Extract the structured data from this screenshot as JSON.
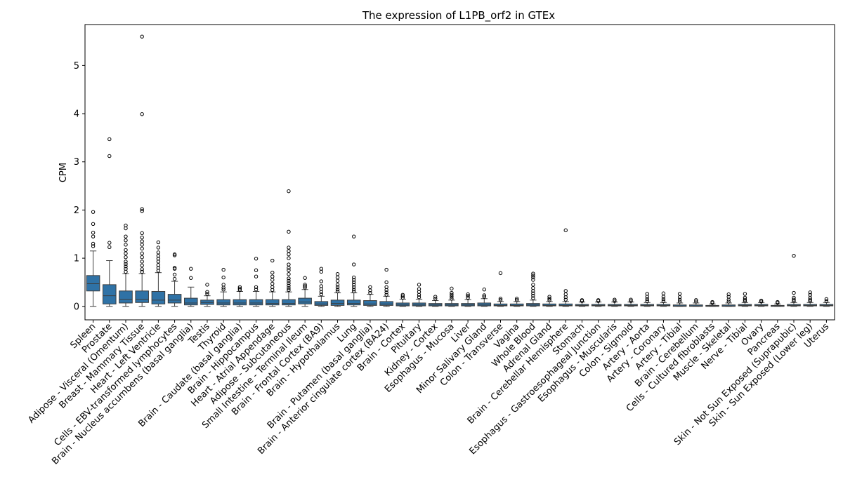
{
  "chart_data": {
    "type": "box",
    "title": "The expression of L1PB_orf2 in GTEx",
    "xlabel": "",
    "ylabel": "CPM",
    "ylim": [
      -0.28,
      5.85
    ],
    "yticks": [
      0,
      1,
      2,
      3,
      4,
      5
    ],
    "box_color": "#2f72a6",
    "categories": [
      "Spleen",
      "Prostate",
      "Adipose - Visceral (Omentum)",
      "Breast - Mammary Tissue",
      "Heart - Left Ventricle",
      "Cells - EBV-transformed lymphocytes",
      "Brain - Nucleus accumbens (basal ganglia)",
      "Testis",
      "Thyroid",
      "Brain - Caudate (basal ganglia)",
      "Brain - Hippocampus",
      "Heart - Atrial Appendage",
      "Adipose - Subcutaneous",
      "Small Intestine - Terminal Ileum",
      "Brain - Frontal Cortex (BA9)",
      "Brain - Hypothalamus",
      "Lung",
      "Brain - Putamen (basal ganglia)",
      "Brain - Anterior cingulate cortex (BA24)",
      "Brain - Cortex",
      "Pituitary",
      "Kidney - Cortex",
      "Esophagus - Mucosa",
      "Liver",
      "Minor Salivary Gland",
      "Colon - Transverse",
      "Vagina",
      "Whole Blood",
      "Adrenal Gland",
      "Brain - Cerebellar Hemisphere",
      "Stomach",
      "Esophagus - Gastroesophageal Junction",
      "Esophagus - Muscularis",
      "Colon - Sigmoid",
      "Artery - Aorta",
      "Artery - Coronary",
      "Artery - Tibial",
      "Brain - Cerebellum",
      "Cells - Cultured fibroblasts",
      "Muscle - Skeletal",
      "Nerve - Tibial",
      "Ovary",
      "Pancreas",
      "Skin - Not Sun Exposed (Suprapubic)",
      "Skin - Sun Exposed (Lower leg)",
      "Uterus"
    ],
    "boxes": [
      {
        "whislo": 0.0,
        "q1": 0.32,
        "med": 0.47,
        "q3": 0.64,
        "whishi": 1.15,
        "fliers": [
          1.25,
          1.3,
          1.45,
          1.53,
          1.71,
          1.96
        ]
      },
      {
        "whislo": 0.0,
        "q1": 0.05,
        "med": 0.22,
        "q3": 0.45,
        "whishi": 0.95,
        "fliers": [
          1.23,
          1.32,
          3.12,
          3.47
        ]
      },
      {
        "whislo": 0.0,
        "q1": 0.07,
        "med": 0.15,
        "q3": 0.32,
        "whishi": 0.68,
        "fliers": [
          0.72,
          0.78,
          0.83,
          0.88,
          0.93,
          1.02,
          1.1,
          1.17,
          1.28,
          1.37,
          1.45,
          1.62,
          1.68
        ]
      },
      {
        "whislo": 0.0,
        "q1": 0.08,
        "med": 0.15,
        "q3": 0.32,
        "whishi": 0.68,
        "fliers": [
          0.72,
          0.77,
          0.85,
          0.93,
          1.02,
          1.1,
          1.2,
          1.28,
          1.35,
          1.43,
          1.52,
          1.98,
          2.02,
          3.99,
          5.6
        ]
      },
      {
        "whislo": 0.0,
        "q1": 0.05,
        "med": 0.13,
        "q3": 0.31,
        "whishi": 0.7,
        "fliers": [
          0.74,
          0.8,
          0.86,
          0.93,
          0.99,
          1.05,
          1.12,
          1.22,
          1.33
        ]
      },
      {
        "whislo": 0.0,
        "q1": 0.07,
        "med": 0.13,
        "q3": 0.25,
        "whishi": 0.52,
        "fliers": [
          0.57,
          0.66,
          0.78,
          0.8,
          1.06,
          1.08
        ]
      },
      {
        "whislo": 0.0,
        "q1": 0.03,
        "med": 0.07,
        "q3": 0.17,
        "whishi": 0.4,
        "fliers": [
          0.59,
          0.78
        ]
      },
      {
        "whislo": 0.0,
        "q1": 0.04,
        "med": 0.08,
        "q3": 0.13,
        "whishi": 0.22,
        "fliers": [
          0.26,
          0.3,
          0.45
        ]
      },
      {
        "whislo": 0.0,
        "q1": 0.03,
        "med": 0.07,
        "q3": 0.14,
        "whishi": 0.3,
        "fliers": [
          0.35,
          0.39,
          0.45,
          0.6,
          0.76
        ]
      },
      {
        "whislo": 0.0,
        "q1": 0.03,
        "med": 0.07,
        "q3": 0.14,
        "whishi": 0.31,
        "fliers": [
          0.34,
          0.37,
          0.4
        ]
      },
      {
        "whislo": 0.0,
        "q1": 0.03,
        "med": 0.07,
        "q3": 0.14,
        "whishi": 0.31,
        "fliers": [
          0.35,
          0.4,
          0.62,
          0.75,
          0.99
        ]
      },
      {
        "whislo": 0.0,
        "q1": 0.03,
        "med": 0.06,
        "q3": 0.14,
        "whishi": 0.3,
        "fliers": [
          0.34,
          0.4,
          0.47,
          0.55,
          0.62,
          0.7,
          0.95
        ]
      },
      {
        "whislo": 0.0,
        "q1": 0.03,
        "med": 0.06,
        "q3": 0.14,
        "whishi": 0.3,
        "fliers": [
          0.34,
          0.38,
          0.43,
          0.48,
          0.53,
          0.58,
          0.67,
          0.75,
          0.8,
          0.87,
          1.0,
          1.08,
          1.15,
          1.22,
          1.55,
          2.39
        ]
      },
      {
        "whislo": 0.0,
        "q1": 0.05,
        "med": 0.09,
        "q3": 0.17,
        "whishi": 0.35,
        "fliers": [
          0.39,
          0.42,
          0.45,
          0.59
        ]
      },
      {
        "whislo": 0.0,
        "q1": 0.02,
        "med": 0.05,
        "q3": 0.1,
        "whishi": 0.21,
        "fliers": [
          0.25,
          0.3,
          0.36,
          0.42,
          0.52,
          0.72,
          0.78
        ]
      },
      {
        "whislo": 0.0,
        "q1": 0.02,
        "med": 0.06,
        "q3": 0.13,
        "whishi": 0.28,
        "fliers": [
          0.31,
          0.35,
          0.4,
          0.45,
          0.53,
          0.6,
          0.67
        ]
      },
      {
        "whislo": 0.0,
        "q1": 0.03,
        "med": 0.06,
        "q3": 0.13,
        "whishi": 0.28,
        "fliers": [
          0.31,
          0.35,
          0.4,
          0.45,
          0.5,
          0.55,
          0.6,
          0.87,
          1.45
        ]
      },
      {
        "whislo": 0.0,
        "q1": 0.02,
        "med": 0.05,
        "q3": 0.12,
        "whishi": 0.25,
        "fliers": [
          0.28,
          0.33,
          0.4
        ]
      },
      {
        "whislo": 0.0,
        "q1": 0.02,
        "med": 0.05,
        "q3": 0.1,
        "whishi": 0.21,
        "fliers": [
          0.24,
          0.29,
          0.34,
          0.4,
          0.5,
          0.76
        ]
      },
      {
        "whislo": 0.0,
        "q1": 0.01,
        "med": 0.03,
        "q3": 0.07,
        "whishi": 0.15,
        "fliers": [
          0.18,
          0.21,
          0.24
        ]
      },
      {
        "whislo": 0.0,
        "q1": 0.01,
        "med": 0.03,
        "q3": 0.07,
        "whishi": 0.15,
        "fliers": [
          0.19,
          0.24,
          0.3,
          0.36,
          0.45
        ]
      },
      {
        "whislo": 0.0,
        "q1": 0.01,
        "med": 0.03,
        "q3": 0.06,
        "whishi": 0.12,
        "fliers": [
          0.16,
          0.2
        ]
      },
      {
        "whislo": 0.0,
        "q1": 0.01,
        "med": 0.03,
        "q3": 0.06,
        "whishi": 0.13,
        "fliers": [
          0.16,
          0.2,
          0.24,
          0.28,
          0.37
        ]
      },
      {
        "whislo": 0.0,
        "q1": 0.01,
        "med": 0.03,
        "q3": 0.06,
        "whishi": 0.14,
        "fliers": [
          0.18,
          0.22,
          0.25
        ]
      },
      {
        "whislo": 0.0,
        "q1": 0.01,
        "med": 0.03,
        "q3": 0.07,
        "whishi": 0.16,
        "fliers": [
          0.2,
          0.23,
          0.35
        ]
      },
      {
        "whislo": 0.0,
        "q1": 0.01,
        "med": 0.02,
        "q3": 0.05,
        "whishi": 0.1,
        "fliers": [
          0.13,
          0.16,
          0.69
        ]
      },
      {
        "whislo": 0.0,
        "q1": 0.01,
        "med": 0.02,
        "q3": 0.05,
        "whishi": 0.1,
        "fliers": [
          0.13,
          0.16
        ]
      },
      {
        "whislo": 0.0,
        "q1": 0.01,
        "med": 0.03,
        "q3": 0.06,
        "whishi": 0.13,
        "fliers": [
          0.17,
          0.22,
          0.27,
          0.32,
          0.38,
          0.45,
          0.55,
          0.6,
          0.64,
          0.68
        ]
      },
      {
        "whislo": 0.0,
        "q1": 0.01,
        "med": 0.02,
        "q3": 0.05,
        "whishi": 0.1,
        "fliers": [
          0.13,
          0.16,
          0.2
        ]
      },
      {
        "whislo": 0.0,
        "q1": 0.01,
        "med": 0.02,
        "q3": 0.05,
        "whishi": 0.1,
        "fliers": [
          0.14,
          0.19,
          0.25,
          0.32,
          1.58
        ]
      },
      {
        "whislo": 0.0,
        "q1": 0.01,
        "med": 0.02,
        "q3": 0.04,
        "whishi": 0.09,
        "fliers": [
          0.11,
          0.13
        ]
      },
      {
        "whislo": 0.0,
        "q1": 0.01,
        "med": 0.02,
        "q3": 0.04,
        "whishi": 0.09,
        "fliers": [
          0.11,
          0.13
        ]
      },
      {
        "whislo": 0.0,
        "q1": 0.01,
        "med": 0.02,
        "q3": 0.04,
        "whishi": 0.09,
        "fliers": [
          0.11,
          0.14
        ]
      },
      {
        "whislo": 0.0,
        "q1": 0.01,
        "med": 0.02,
        "q3": 0.04,
        "whishi": 0.09,
        "fliers": [
          0.11,
          0.14
        ]
      },
      {
        "whislo": 0.0,
        "q1": 0.01,
        "med": 0.02,
        "q3": 0.04,
        "whishi": 0.08,
        "fliers": [
          0.11,
          0.15,
          0.2,
          0.26
        ]
      },
      {
        "whislo": 0.0,
        "q1": 0.01,
        "med": 0.02,
        "q3": 0.04,
        "whishi": 0.08,
        "fliers": [
          0.11,
          0.15,
          0.2,
          0.27
        ]
      },
      {
        "whislo": 0.0,
        "q1": 0.0,
        "med": 0.01,
        "q3": 0.03,
        "whishi": 0.07,
        "fliers": [
          0.1,
          0.14,
          0.19,
          0.26
        ]
      },
      {
        "whislo": 0.0,
        "q1": 0.0,
        "med": 0.01,
        "q3": 0.03,
        "whishi": 0.07,
        "fliers": [
          0.1,
          0.13
        ]
      },
      {
        "whislo": 0.0,
        "q1": 0.0,
        "med": 0.01,
        "q3": 0.02,
        "whishi": 0.05,
        "fliers": [
          0.07,
          0.09
        ]
      },
      {
        "whislo": 0.0,
        "q1": 0.0,
        "med": 0.01,
        "q3": 0.03,
        "whishi": 0.07,
        "fliers": [
          0.1,
          0.14,
          0.2,
          0.25
        ]
      },
      {
        "whislo": 0.0,
        "q1": 0.01,
        "med": 0.02,
        "q3": 0.04,
        "whishi": 0.08,
        "fliers": [
          0.11,
          0.14,
          0.18,
          0.26
        ]
      },
      {
        "whislo": 0.0,
        "q1": 0.01,
        "med": 0.02,
        "q3": 0.04,
        "whishi": 0.08,
        "fliers": [
          0.1,
          0.12
        ]
      },
      {
        "whislo": 0.0,
        "q1": 0.0,
        "med": 0.01,
        "q3": 0.02,
        "whishi": 0.05,
        "fliers": [
          0.07,
          0.09
        ]
      },
      {
        "whislo": 0.0,
        "q1": 0.01,
        "med": 0.02,
        "q3": 0.04,
        "whishi": 0.08,
        "fliers": [
          0.11,
          0.14,
          0.18,
          0.28,
          1.05
        ]
      },
      {
        "whislo": 0.0,
        "q1": 0.01,
        "med": 0.02,
        "q3": 0.04,
        "whishi": 0.08,
        "fliers": [
          0.11,
          0.14,
          0.18,
          0.24,
          0.29
        ]
      },
      {
        "whislo": 0.0,
        "q1": 0.01,
        "med": 0.02,
        "q3": 0.04,
        "whishi": 0.08,
        "fliers": [
          0.11,
          0.15
        ]
      }
    ]
  }
}
